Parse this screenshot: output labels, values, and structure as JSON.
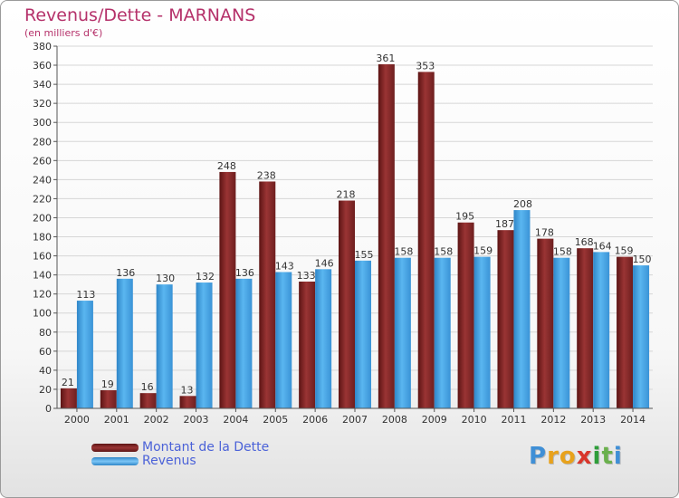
{
  "chart_data": {
    "type": "bar",
    "title": "Revenus/Dette - MARNANS",
    "subtitle": "(en milliers d'€)",
    "categories": [
      "2000",
      "2001",
      "2002",
      "2003",
      "2004",
      "2005",
      "2006",
      "2007",
      "2008",
      "2009",
      "2010",
      "2011",
      "2012",
      "2013",
      "2014"
    ],
    "series": [
      {
        "name": "Montant de la Dette",
        "color": "#8b2a2a",
        "values": [
          21,
          19,
          16,
          13,
          248,
          238,
          133,
          218,
          361,
          353,
          195,
          187,
          178,
          168,
          159
        ]
      },
      {
        "name": "Revenus",
        "color": "#48a8e8",
        "values": [
          113,
          136,
          130,
          132,
          136,
          143,
          146,
          155,
          158,
          158,
          159,
          208,
          158,
          164,
          150
        ]
      }
    ],
    "ylim": [
      0,
      380
    ],
    "yticks": [
      0,
      20,
      40,
      60,
      80,
      100,
      120,
      140,
      160,
      180,
      200,
      220,
      240,
      260,
      280,
      300,
      320,
      340,
      360,
      380
    ],
    "grid": true,
    "legend_position": "bottom-left"
  },
  "logo": {
    "letters": [
      "P",
      "r",
      "o",
      "x",
      "i",
      "t",
      "i"
    ],
    "colors": [
      "#3f8fd6",
      "#e8a21c",
      "#e8a21c",
      "#d9362b",
      "#2e9e3a",
      "#6ab04c",
      "#3f8fd6"
    ]
  }
}
